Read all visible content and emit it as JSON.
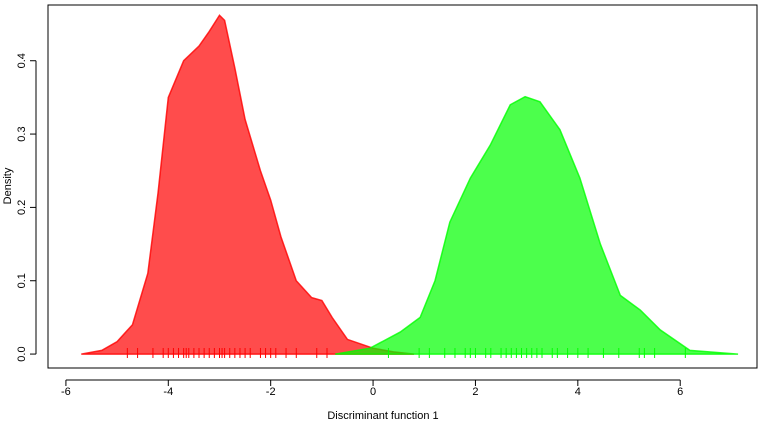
{
  "chart_data": {
    "type": "density",
    "xlabel": "Discriminant function 1",
    "ylabel": "Density",
    "xlim": [
      -6.35,
      7.5
    ],
    "ylim": [
      -0.019,
      0.476
    ],
    "xticks": [
      -6,
      -4,
      -2,
      0,
      2,
      4,
      6
    ],
    "yticks": [
      {
        "value": 0,
        "label": "0.0"
      },
      0.1,
      0.2,
      0.3,
      0.4
    ],
    "series": [
      {
        "color": "#ff0000",
        "x": [
          -5.7,
          -5.3,
          -5.0,
          -4.7,
          -4.4,
          -4.2,
          -4.0,
          -3.7,
          -3.4,
          -3.2,
          -3.0,
          -2.9,
          -2.7,
          -2.5,
          -2.2,
          -2.0,
          -1.8,
          -1.5,
          -1.2,
          -1.0,
          -0.8,
          -0.5,
          0,
          0.4,
          0.8
        ],
        "values": [
          0,
          0.005,
          0.017,
          0.04,
          0.11,
          0.22,
          0.35,
          0.4,
          0.42,
          0.44,
          0.462,
          0.455,
          0.39,
          0.32,
          0.25,
          0.21,
          0.16,
          0.1,
          0.077,
          0.073,
          0.05,
          0.02,
          0.008,
          0.003,
          0
        ],
        "rug": [
          -4.8,
          -4.6,
          -4.3,
          -4.1,
          -4.0,
          -3.9,
          -3.8,
          -3.7,
          -3.65,
          -3.6,
          -3.5,
          -3.4,
          -3.3,
          -3.2,
          -3.1,
          -3.0,
          -2.95,
          -2.9,
          -2.8,
          -2.7,
          -2.6,
          -2.5,
          -2.4,
          -2.2,
          -2.1,
          -2.0,
          -1.9,
          -1.7,
          -1.5,
          -1.1,
          -0.9
        ]
      },
      {
        "color": "#00ff00",
        "x": [
          -0.74,
          -0.06,
          0.53,
          0.92,
          1.21,
          1.5,
          1.9,
          2.29,
          2.68,
          2.97,
          3.26,
          3.65,
          4.04,
          4.44,
          4.83,
          5.22,
          5.61,
          6.19,
          7.13
        ],
        "values": [
          0,
          0.008,
          0.03,
          0.05,
          0.1,
          0.18,
          0.24,
          0.285,
          0.34,
          0.351,
          0.344,
          0.306,
          0.24,
          0.15,
          0.08,
          0.06,
          0.033,
          0.005,
          0
        ],
        "rug": [
          0.3,
          0.9,
          1.1,
          1.4,
          1.6,
          1.8,
          1.9,
          2.0,
          2.2,
          2.3,
          2.5,
          2.6,
          2.7,
          2.8,
          2.9,
          3.0,
          3.1,
          3.2,
          3.3,
          3.5,
          3.6,
          3.8,
          4.0,
          4.2,
          4.5,
          4.8,
          5.2,
          5.3,
          5.5,
          6.1
        ]
      }
    ]
  }
}
